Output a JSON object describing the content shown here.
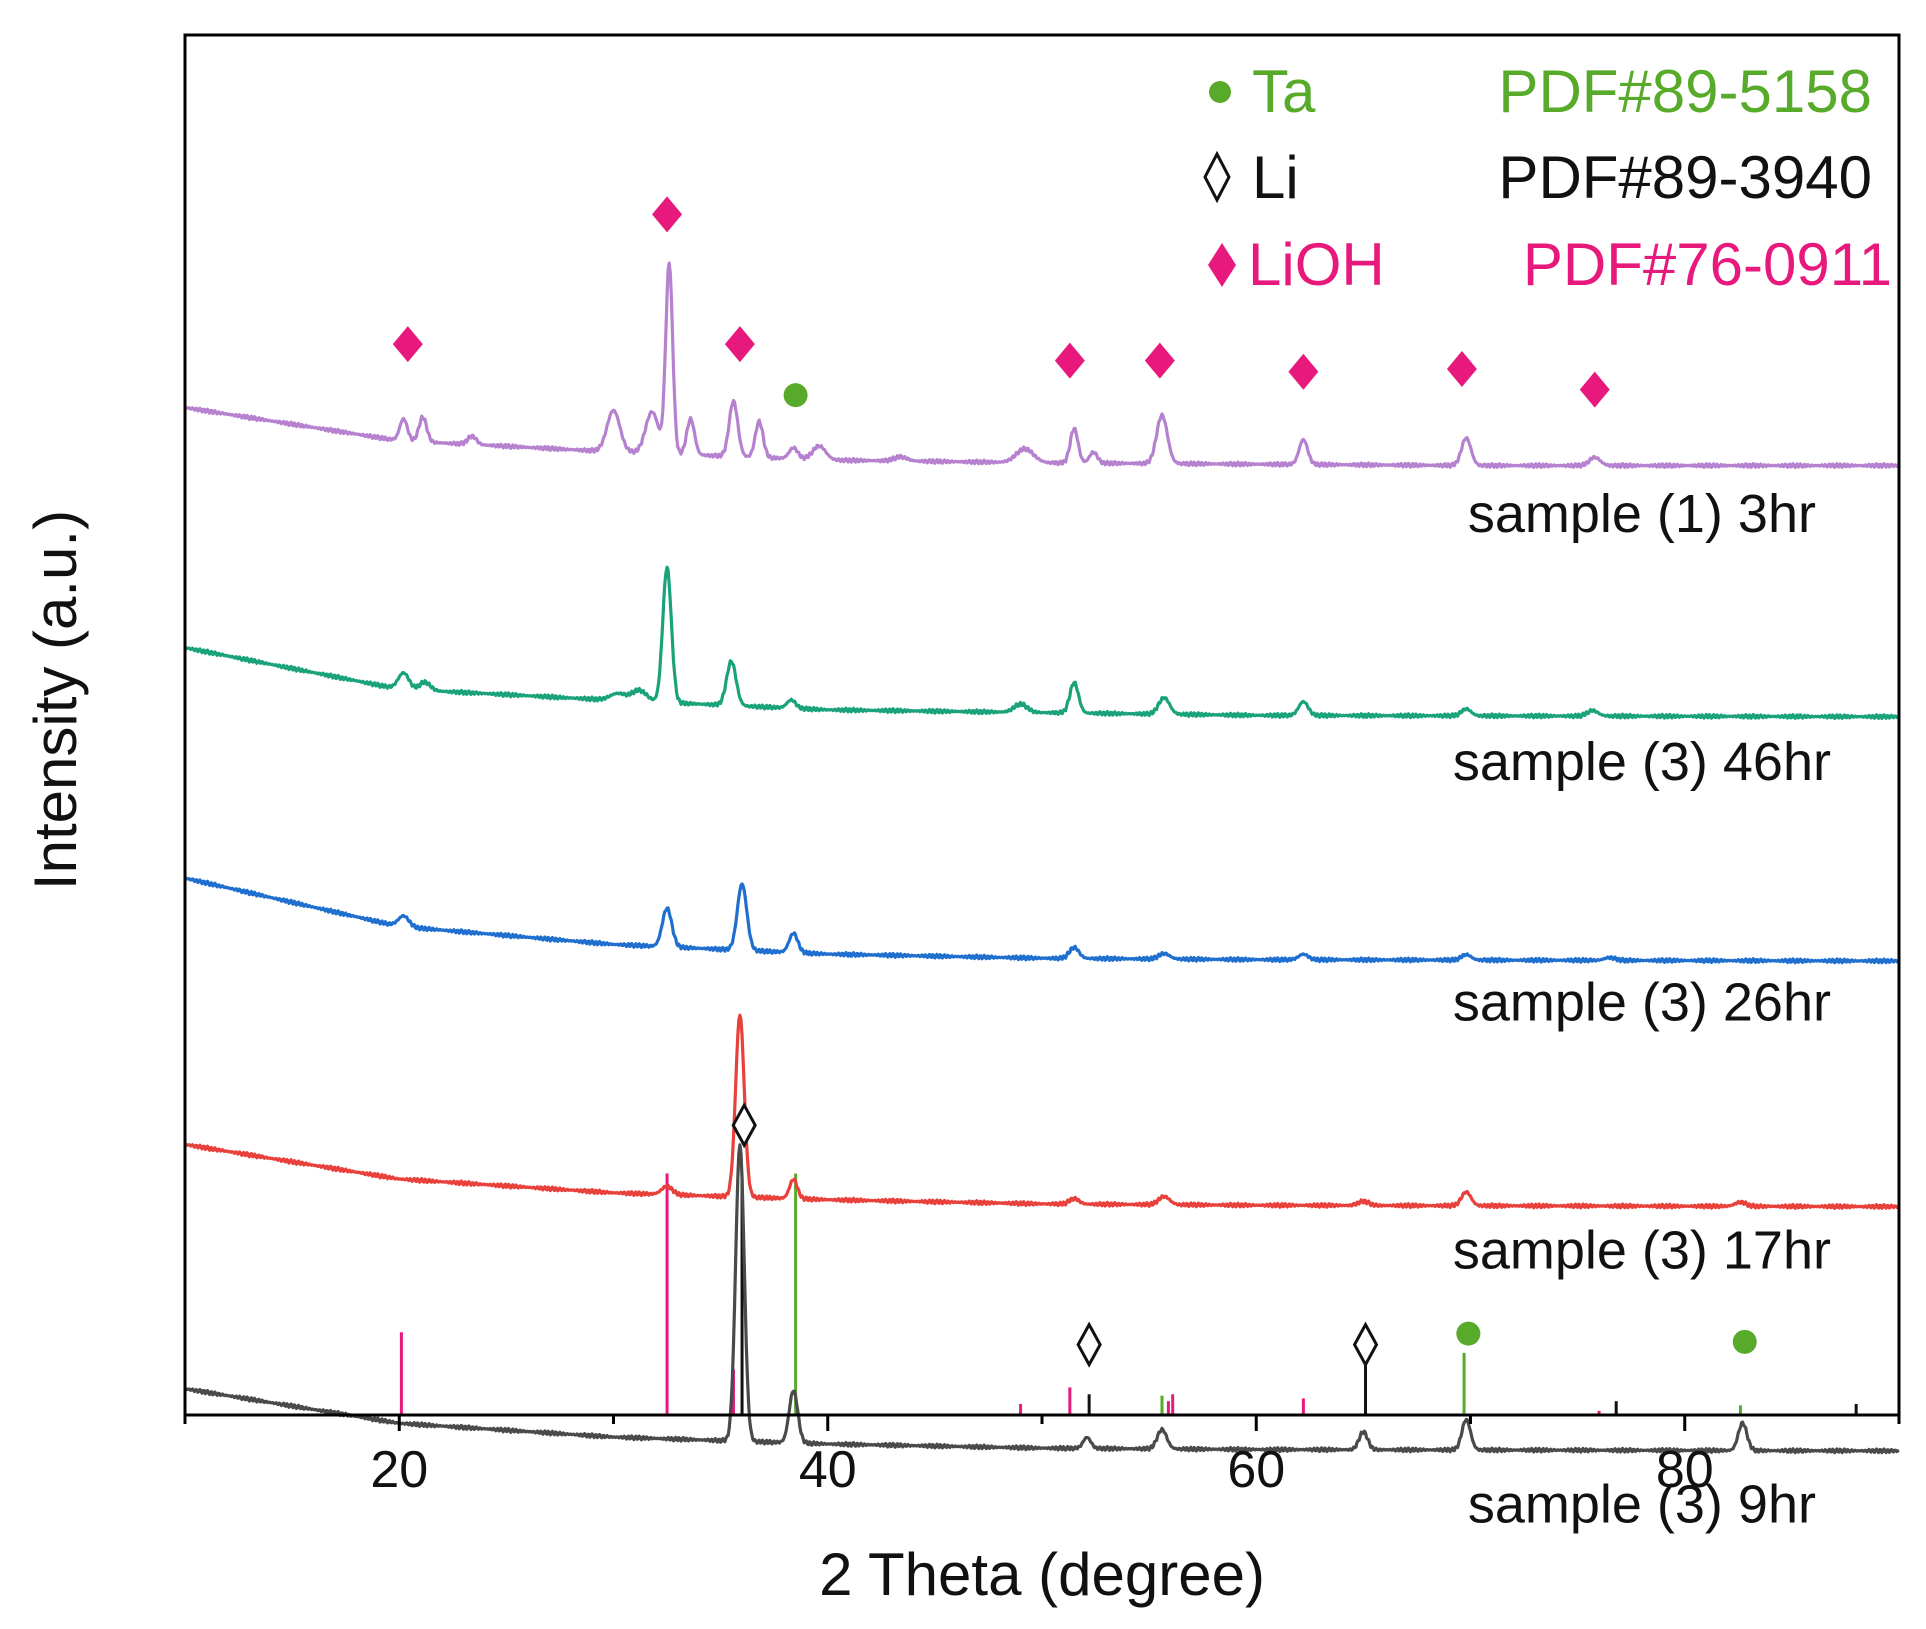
{
  "chart_data": {
    "type": "line",
    "title": "",
    "xlabel": "2 Theta (degree)",
    "ylabel": "Intensity (a.u.)",
    "xlim": [
      10,
      90
    ],
    "ylim": [
      0,
      10
    ],
    "x_ticks": [
      20,
      40,
      60,
      80
    ],
    "y_ticks": [],
    "grid": false,
    "legend_position": "top-right",
    "legend": [
      {
        "marker": "dot",
        "name": "Ta",
        "pdf": "PDF#89-5158",
        "color": "#58aa2a"
      },
      {
        "marker": "diamond-open",
        "name": "Li",
        "pdf": "PDF#89-3940",
        "color": "#111111"
      },
      {
        "marker": "diamond",
        "name": "LiOH",
        "pdf": "PDF#76-0911",
        "color": "#e8197c"
      }
    ],
    "series": [
      {
        "name": "sample (1) 3hr",
        "color": "#b681cf",
        "offset": 6.88,
        "baseline": [
          [
            10,
            0.42
          ],
          [
            20,
            0.18
          ],
          [
            30,
            0.1
          ],
          [
            40,
            0.04
          ],
          [
            50,
            0.02
          ],
          [
            60,
            0.01
          ],
          [
            70,
            0.0
          ],
          [
            90,
            0.0
          ]
        ],
        "peaks": [
          [
            20.2,
            0.16,
            0.18
          ],
          [
            21.1,
            0.18,
            0.18
          ],
          [
            23.4,
            0.06,
            0.2
          ],
          [
            30.0,
            0.3,
            0.3
          ],
          [
            31.8,
            0.3,
            0.3
          ],
          [
            32.6,
            1.38,
            0.16
          ],
          [
            33.6,
            0.26,
            0.18
          ],
          [
            35.6,
            0.4,
            0.2
          ],
          [
            36.8,
            0.26,
            0.18
          ],
          [
            38.4,
            0.08,
            0.2
          ],
          [
            39.6,
            0.1,
            0.3
          ],
          [
            43.4,
            0.03,
            0.3
          ],
          [
            49.2,
            0.1,
            0.4
          ],
          [
            51.5,
            0.25,
            0.18
          ],
          [
            52.4,
            0.08,
            0.18
          ],
          [
            55.6,
            0.35,
            0.25
          ],
          [
            62.2,
            0.18,
            0.2
          ],
          [
            69.8,
            0.2,
            0.22
          ],
          [
            75.8,
            0.06,
            0.25
          ]
        ]
      },
      {
        "name": "sample (3) 46hr",
        "color": "#1aa37a",
        "offset": 5.06,
        "baseline": [
          [
            10,
            0.5
          ],
          [
            20,
            0.2
          ],
          [
            30,
            0.12
          ],
          [
            40,
            0.05
          ],
          [
            50,
            0.03
          ],
          [
            60,
            0.01
          ],
          [
            90,
            0.0
          ]
        ],
        "peaks": [
          [
            20.2,
            0.12,
            0.25
          ],
          [
            21.2,
            0.06,
            0.25
          ],
          [
            30.2,
            0.05,
            0.35
          ],
          [
            31.2,
            0.08,
            0.35
          ],
          [
            32.5,
            0.98,
            0.2
          ],
          [
            35.5,
            0.32,
            0.22
          ],
          [
            38.3,
            0.06,
            0.2
          ],
          [
            49.0,
            0.06,
            0.3
          ],
          [
            51.5,
            0.22,
            0.2
          ],
          [
            55.7,
            0.12,
            0.25
          ],
          [
            62.2,
            0.1,
            0.22
          ],
          [
            69.8,
            0.05,
            0.22
          ],
          [
            75.7,
            0.04,
            0.25
          ]
        ]
      },
      {
        "name": "sample (3) 26hr",
        "color": "#1f6fcf",
        "offset": 3.29,
        "baseline": [
          [
            10,
            0.6
          ],
          [
            20,
            0.25
          ],
          [
            30,
            0.12
          ],
          [
            40,
            0.05
          ],
          [
            50,
            0.02
          ],
          [
            60,
            0.01
          ],
          [
            90,
            0.0
          ]
        ],
        "peaks": [
          [
            20.2,
            0.08,
            0.25
          ],
          [
            32.5,
            0.28,
            0.22
          ],
          [
            36.0,
            0.48,
            0.22
          ],
          [
            38.4,
            0.14,
            0.2
          ],
          [
            51.5,
            0.08,
            0.22
          ],
          [
            55.7,
            0.04,
            0.25
          ],
          [
            62.2,
            0.04,
            0.22
          ],
          [
            69.8,
            0.04,
            0.22
          ],
          [
            76.5,
            0.02,
            0.25
          ]
        ]
      },
      {
        "name": "sample (3) 17hr",
        "color": "#e8403b",
        "offset": 1.51,
        "baseline": [
          [
            10,
            0.45
          ],
          [
            20,
            0.2
          ],
          [
            30,
            0.1
          ],
          [
            40,
            0.05
          ],
          [
            50,
            0.02
          ],
          [
            60,
            0.01
          ],
          [
            90,
            0.0
          ]
        ],
        "peaks": [
          [
            32.5,
            0.06,
            0.25
          ],
          [
            35.9,
            1.32,
            0.2
          ],
          [
            38.4,
            0.14,
            0.18
          ],
          [
            51.5,
            0.04,
            0.22
          ],
          [
            55.7,
            0.06,
            0.25
          ],
          [
            65.0,
            0.03,
            0.25
          ],
          [
            69.8,
            0.1,
            0.22
          ],
          [
            82.6,
            0.03,
            0.25
          ]
        ]
      },
      {
        "name": "sample (3) 9hr",
        "color": "#4a4a4a",
        "offset": -0.26,
        "baseline": [
          [
            10,
            0.45
          ],
          [
            20,
            0.2
          ],
          [
            30,
            0.1
          ],
          [
            40,
            0.05
          ],
          [
            50,
            0.02
          ],
          [
            60,
            0.01
          ],
          [
            90,
            0.0
          ]
        ],
        "peaks": [
          [
            35.9,
            2.15,
            0.2
          ],
          [
            38.4,
            0.38,
            0.2
          ],
          [
            52.1,
            0.08,
            0.18
          ],
          [
            55.6,
            0.14,
            0.22
          ],
          [
            65.0,
            0.13,
            0.2
          ],
          [
            69.8,
            0.22,
            0.2
          ],
          [
            82.7,
            0.2,
            0.2
          ]
        ]
      }
    ],
    "reference_lines": [
      {
        "phase": "LiOH",
        "color": "#e8197c",
        "lines": [
          [
            20.1,
            0.6
          ],
          [
            32.5,
            1.75
          ],
          [
            35.6,
            0.33
          ],
          [
            49.0,
            0.08
          ],
          [
            51.3,
            0.2
          ],
          [
            55.9,
            0.1
          ],
          [
            56.1,
            0.15
          ],
          [
            62.2,
            0.12
          ],
          [
            76.0,
            0.03
          ]
        ]
      },
      {
        "phase": "Li",
        "color": "#111111",
        "lines": [
          [
            36.0,
            1.75
          ],
          [
            52.2,
            0.15
          ],
          [
            65.1,
            0.45
          ],
          [
            76.8,
            0.1
          ],
          [
            88.0,
            0.08
          ]
        ]
      },
      {
        "phase": "Ta",
        "color": "#58aa2a",
        "lines": [
          [
            38.5,
            1.75
          ],
          [
            55.6,
            0.14
          ],
          [
            69.7,
            0.45
          ],
          [
            82.6,
            0.07
          ]
        ]
      }
    ],
    "annotations": [
      {
        "marker": "diamond",
        "color": "#e8197c",
        "x": 32.5,
        "y": 8.7
      },
      {
        "marker": "diamond",
        "color": "#e8197c",
        "x": 20.4,
        "y": 7.76
      },
      {
        "marker": "diamond",
        "color": "#e8197c",
        "x": 35.9,
        "y": 7.76
      },
      {
        "marker": "diamond",
        "color": "#e8197c",
        "x": 51.3,
        "y": 7.64
      },
      {
        "marker": "diamond",
        "color": "#e8197c",
        "x": 55.5,
        "y": 7.64
      },
      {
        "marker": "diamond",
        "color": "#e8197c",
        "x": 62.2,
        "y": 7.56
      },
      {
        "marker": "diamond",
        "color": "#e8197c",
        "x": 69.6,
        "y": 7.58
      },
      {
        "marker": "diamond",
        "color": "#e8197c",
        "x": 75.8,
        "y": 7.43
      },
      {
        "marker": "dot",
        "color": "#58aa2a",
        "x": 38.5,
        "y": 7.39
      },
      {
        "marker": "diamond-open",
        "color": "#111111",
        "x": 36.1,
        "y": 2.1
      },
      {
        "marker": "diamond-open",
        "color": "#111111",
        "x": 52.2,
        "y": 0.51
      },
      {
        "marker": "diamond-open",
        "color": "#111111",
        "x": 65.1,
        "y": 0.51
      },
      {
        "marker": "dot",
        "color": "#58aa2a",
        "x": 69.9,
        "y": 0.59
      },
      {
        "marker": "dot",
        "color": "#58aa2a",
        "x": 82.8,
        "y": 0.53
      }
    ],
    "curve_labels": [
      {
        "text": "sample (1) 3hr",
        "x": 78,
        "y": 6.4
      },
      {
        "text": "sample (3) 46hr",
        "x": 78,
        "y": 4.6
      },
      {
        "text": "sample (3) 26hr",
        "x": 78,
        "y": 2.86
      },
      {
        "text": "sample (3) 17hr",
        "x": 78,
        "y": 1.06
      },
      {
        "text": "sample (3) 9hr",
        "x": 78,
        "y": -0.78
      }
    ]
  }
}
